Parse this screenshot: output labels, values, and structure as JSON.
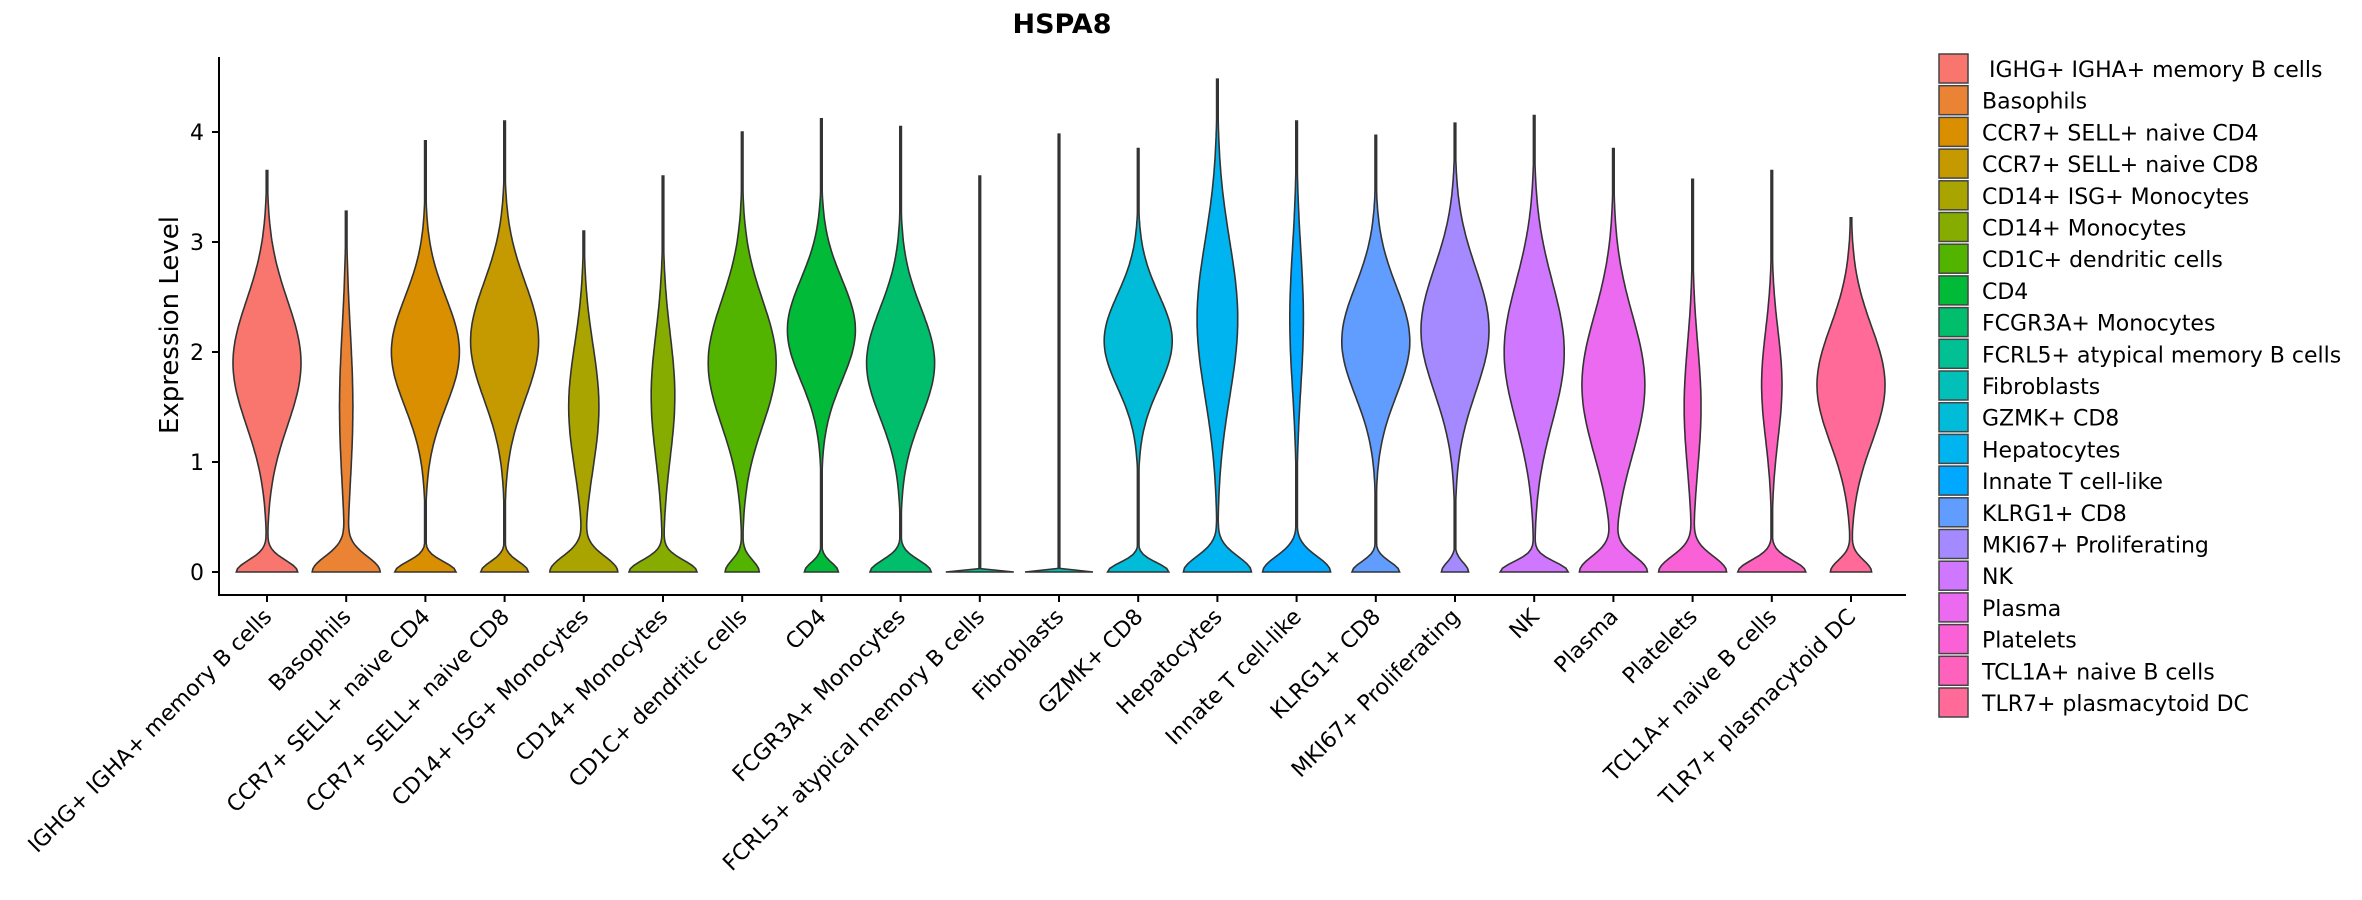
{
  "chart_data": {
    "type": "violin",
    "title": "HSPA8",
    "xlabel": "",
    "ylabel": "Expression Level",
    "ylim": [
      -0.3,
      4.7
    ],
    "yticks": [
      "0",
      "1",
      "2",
      "3",
      "4"
    ],
    "legend_position": "right",
    "grid": false,
    "categories": [
      "IGHG+ IGHA+ memory B cells",
      "Basophils",
      "CCR7+ SELL+ naive CD4",
      "CCR7+ SELL+ naive CD8",
      "CD14+ ISG+ Monocytes",
      "CD14+ Monocytes",
      "CD1C+ dendritic cells",
      "CD4",
      "FCGR3A+ Monocytes",
      "FCRL5+ atypical memory B cells",
      "Fibroblasts",
      "GZMK+ CD8",
      "Hepatocytes",
      "Innate T cell-like",
      "KLRG1+ CD8",
      "MKI67+ Proliferating",
      "NK",
      "Plasma",
      "Platelets",
      "TCL1A+ naive B cells",
      "TLR7+ plasmacytoid DC"
    ],
    "legend_labels": [
      " IGHG+ IGHA+ memory B cells",
      "Basophils",
      "CCR7+ SELL+ naive CD4",
      "CCR7+ SELL+ naive CD8",
      "CD14+ ISG+ Monocytes",
      "CD14+ Monocytes",
      "CD1C+ dendritic cells",
      "CD4",
      "FCGR3A+ Monocytes",
      "FCRL5+ atypical memory B cells",
      "Fibroblasts",
      "GZMK+ CD8",
      "Hepatocytes",
      "Innate T cell-like",
      "KLRG1+ CD8",
      "MKI67+ Proliferating",
      "NK",
      "Plasma",
      "Platelets",
      "TCL1A+ naive B cells",
      "TLR7+ plasmacytoid DC"
    ],
    "colors": [
      "#F8766D",
      "#EB8335",
      "#DA8F00",
      "#C49A00",
      "#A9A400",
      "#86AC00",
      "#53B400",
      "#00BA38",
      "#00BE6C",
      "#00C094",
      "#00C0B8",
      "#00BCD8",
      "#00B4F0",
      "#00A9FF",
      "#619CFF",
      "#A58AFF",
      "#CF78FF",
      "#EB6AF0",
      "#FB61D7",
      "#FF62BC",
      "#FF6A98"
    ],
    "series": [
      {
        "max": 3.65,
        "zero_weight": 0.9,
        "zero_sd": 0.15,
        "mode": 1.9,
        "mode_weight": 1.0,
        "mode_sd": 0.8
      },
      {
        "max": 3.28,
        "zero_weight": 1.0,
        "zero_sd": 0.2,
        "mode": 1.5,
        "mode_weight": 0.2,
        "mode_sd": 1.0
      },
      {
        "max": 3.92,
        "zero_weight": 0.9,
        "zero_sd": 0.13,
        "mode": 2.0,
        "mode_weight": 1.0,
        "mode_sd": 0.7
      },
      {
        "max": 4.1,
        "zero_weight": 0.7,
        "zero_sd": 0.13,
        "mode": 2.1,
        "mode_weight": 1.0,
        "mode_sd": 0.75
      },
      {
        "max": 3.1,
        "zero_weight": 1.0,
        "zero_sd": 0.2,
        "mode": 1.5,
        "mode_weight": 0.45,
        "mode_sd": 0.8
      },
      {
        "max": 3.6,
        "zero_weight": 1.0,
        "zero_sd": 0.15,
        "mode": 1.6,
        "mode_weight": 0.35,
        "mode_sd": 0.8
      },
      {
        "max": 4.0,
        "zero_weight": 0.5,
        "zero_sd": 0.15,
        "mode": 1.9,
        "mode_weight": 1.0,
        "mode_sd": 0.8
      },
      {
        "max": 4.12,
        "zero_weight": 0.5,
        "zero_sd": 0.12,
        "mode": 2.2,
        "mode_weight": 1.0,
        "mode_sd": 0.65
      },
      {
        "max": 4.05,
        "zero_weight": 0.9,
        "zero_sd": 0.15,
        "mode": 1.9,
        "mode_weight": 1.0,
        "mode_sd": 0.7
      },
      {
        "max": 3.6,
        "zero_weight": 1.0,
        "zero_sd": 0.01,
        "mode": 0,
        "mode_weight": 0,
        "mode_sd": 1
      },
      {
        "max": 3.98,
        "zero_weight": 1.0,
        "zero_sd": 0.01,
        "mode": 0,
        "mode_weight": 0,
        "mode_sd": 1
      },
      {
        "max": 3.85,
        "zero_weight": 0.9,
        "zero_sd": 0.12,
        "mode": 2.1,
        "mode_weight": 1.0,
        "mode_sd": 0.6
      },
      {
        "max": 4.48,
        "zero_weight": 1.0,
        "zero_sd": 0.2,
        "mode": 2.3,
        "mode_weight": 0.6,
        "mode_sd": 1.0
      },
      {
        "max": 4.1,
        "zero_weight": 1.0,
        "zero_sd": 0.2,
        "mode": 2.3,
        "mode_weight": 0.2,
        "mode_sd": 0.9
      },
      {
        "max": 3.97,
        "zero_weight": 0.7,
        "zero_sd": 0.13,
        "mode": 2.1,
        "mode_weight": 1.0,
        "mode_sd": 0.7
      },
      {
        "max": 4.08,
        "zero_weight": 0.4,
        "zero_sd": 0.12,
        "mode": 2.2,
        "mode_weight": 1.0,
        "mode_sd": 0.8
      },
      {
        "max": 4.15,
        "zero_weight": 0.9,
        "zero_sd": 0.13,
        "mode": 2.0,
        "mode_weight": 0.8,
        "mode_sd": 0.9
      },
      {
        "max": 3.85,
        "zero_weight": 1.0,
        "zero_sd": 0.2,
        "mode": 1.7,
        "mode_weight": 0.95,
        "mode_sd": 0.9
      },
      {
        "max": 3.57,
        "zero_weight": 1.0,
        "zero_sd": 0.2,
        "mode": 1.5,
        "mode_weight": 0.25,
        "mode_sd": 0.8
      },
      {
        "max": 3.65,
        "zero_weight": 1.0,
        "zero_sd": 0.15,
        "mode": 1.7,
        "mode_weight": 0.3,
        "mode_sd": 0.7
      },
      {
        "max": 3.22,
        "zero_weight": 0.6,
        "zero_sd": 0.15,
        "mode": 1.7,
        "mode_weight": 1.0,
        "mode_sd": 0.75
      }
    ]
  }
}
